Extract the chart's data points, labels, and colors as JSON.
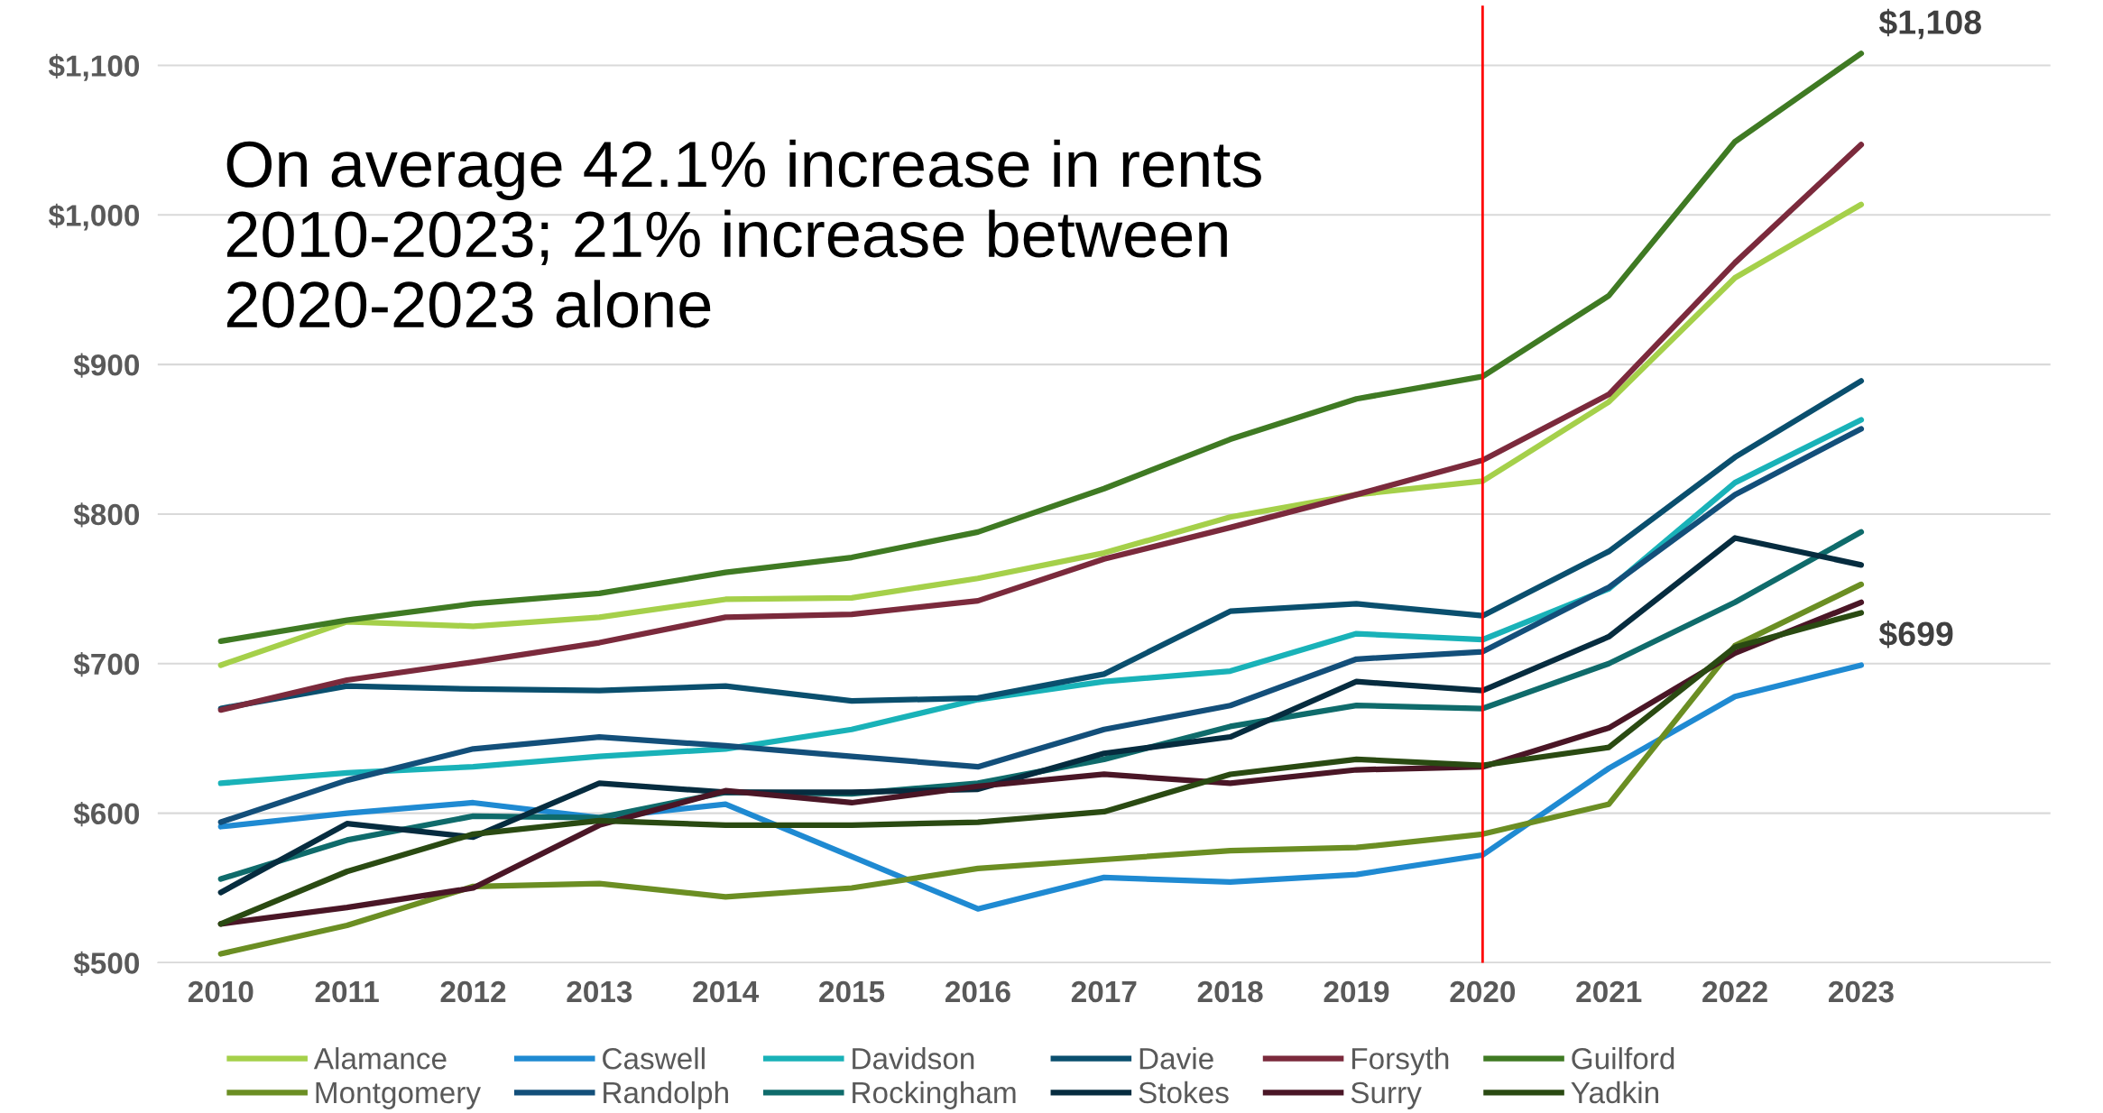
{
  "chart_data": {
    "type": "line",
    "x": [
      2010,
      2011,
      2012,
      2013,
      2014,
      2015,
      2016,
      2017,
      2018,
      2019,
      2020,
      2021,
      2022,
      2023
    ],
    "xlim": [
      2009.5,
      2024.5
    ],
    "xticks": [
      2010,
      2011,
      2012,
      2013,
      2014,
      2015,
      2016,
      2017,
      2018,
      2019,
      2020,
      2021,
      2022,
      2023
    ],
    "ylim": [
      500,
      1140
    ],
    "yticks": [
      {
        "value": 500,
        "label": "$500"
      },
      {
        "value": 600,
        "label": "$600"
      },
      {
        "value": 700,
        "label": "$700"
      },
      {
        "value": 800,
        "label": "$800"
      },
      {
        "value": 900,
        "label": "$900"
      },
      {
        "value": 1000,
        "label": "$1,000"
      },
      {
        "value": 1100,
        "label": "$1,100"
      }
    ],
    "grid": "y",
    "legend": "bottom",
    "marker": "none",
    "line_style": "solid",
    "ref_lines": [
      {
        "axis": "x",
        "value": 2020,
        "color": "#ff0000"
      }
    ],
    "annotations": [
      "On average 42.1% increase in rents 2010-2023; 21% increase between 2020-2023 alone",
      {
        "text": "$1,108",
        "x": 2023,
        "y": 1108
      },
      {
        "text": "$699",
        "x": 2023,
        "y": 699
      }
    ],
    "series": [
      {
        "name": "Alamance",
        "color": "#a5d04a",
        "values": [
          699,
          728,
          725,
          731,
          743,
          744,
          757,
          774,
          798,
          813,
          822,
          875,
          958,
          1007
        ]
      },
      {
        "name": "Caswell",
        "color": "#1f8ad2",
        "values": [
          591,
          600,
          607,
          597,
          606,
          571,
          536,
          557,
          554,
          559,
          572,
          630,
          678,
          699
        ]
      },
      {
        "name": "Davidson",
        "color": "#19b2b8",
        "values": [
          620,
          627,
          631,
          638,
          643,
          656,
          676,
          688,
          695,
          720,
          716,
          750,
          821,
          863
        ]
      },
      {
        "name": "Davie",
        "color": "#0a4f6e",
        "values": [
          670,
          685,
          683,
          682,
          685,
          675,
          677,
          693,
          735,
          740,
          732,
          775,
          838,
          889
        ]
      },
      {
        "name": "Forsyth",
        "color": "#7b2a3c",
        "values": [
          669,
          689,
          701,
          714,
          731,
          733,
          742,
          770,
          791,
          813,
          836,
          880,
          968,
          1047
        ]
      },
      {
        "name": "Guilford",
        "color": "#3f7a23",
        "values": [
          715,
          729,
          740,
          747,
          761,
          771,
          788,
          817,
          850,
          877,
          892,
          946,
          1049,
          1108
        ]
      },
      {
        "name": "Montgomery",
        "color": "#6b8e23",
        "values": [
          506,
          525,
          551,
          553,
          544,
          550,
          563,
          569,
          575,
          577,
          586,
          606,
          712,
          753
        ]
      },
      {
        "name": "Randolph",
        "color": "#134f7a",
        "values": [
          594,
          622,
          643,
          651,
          645,
          638,
          631,
          656,
          672,
          703,
          708,
          751,
          813,
          857
        ]
      },
      {
        "name": "Rockingham",
        "color": "#0f6b6b",
        "values": [
          556,
          582,
          598,
          597,
          614,
          613,
          620,
          636,
          658,
          672,
          670,
          700,
          741,
          788
        ]
      },
      {
        "name": "Stokes",
        "color": "#062c3f",
        "values": [
          547,
          593,
          584,
          620,
          614,
          614,
          616,
          640,
          651,
          688,
          682,
          718,
          784,
          766
        ]
      },
      {
        "name": "Surry",
        "color": "#4a1626",
        "values": [
          526,
          537,
          550,
          592,
          615,
          607,
          618,
          626,
          620,
          629,
          631,
          657,
          707,
          741
        ]
      },
      {
        "name": "Yadkin",
        "color": "#2a4a12",
        "values": [
          526,
          561,
          586,
          595,
          592,
          592,
          594,
          601,
          626,
          636,
          632,
          644,
          711,
          734
        ]
      }
    ]
  }
}
